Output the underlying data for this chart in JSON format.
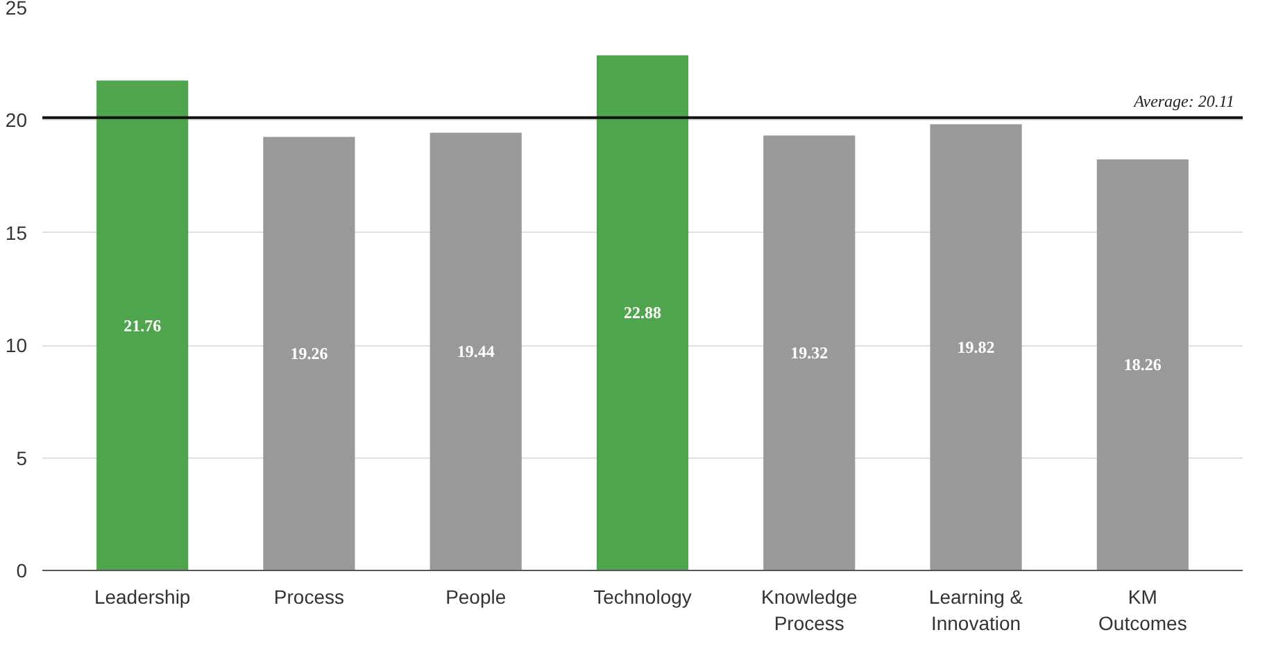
{
  "chart_data": {
    "type": "bar",
    "categories": [
      "Leadership",
      "Process",
      "People",
      "Technology",
      "Knowledge\nProcess",
      "Learning &\nInnovation",
      "KM\nOutcomes"
    ],
    "values": [
      21.76,
      19.26,
      19.44,
      22.88,
      19.32,
      19.82,
      18.26
    ],
    "colors": [
      "#4ea54e",
      "#999999",
      "#999999",
      "#4ea54e",
      "#999999",
      "#999999",
      "#999999"
    ],
    "data_labels": true,
    "ylim": [
      0,
      25
    ],
    "yticks": [
      0,
      5,
      10,
      15,
      20,
      25
    ],
    "grid": "y",
    "ref_lines": [
      {
        "axis": "y",
        "value": 20.11,
        "label": "Average: 20.11",
        "color": "#111111"
      }
    ]
  }
}
